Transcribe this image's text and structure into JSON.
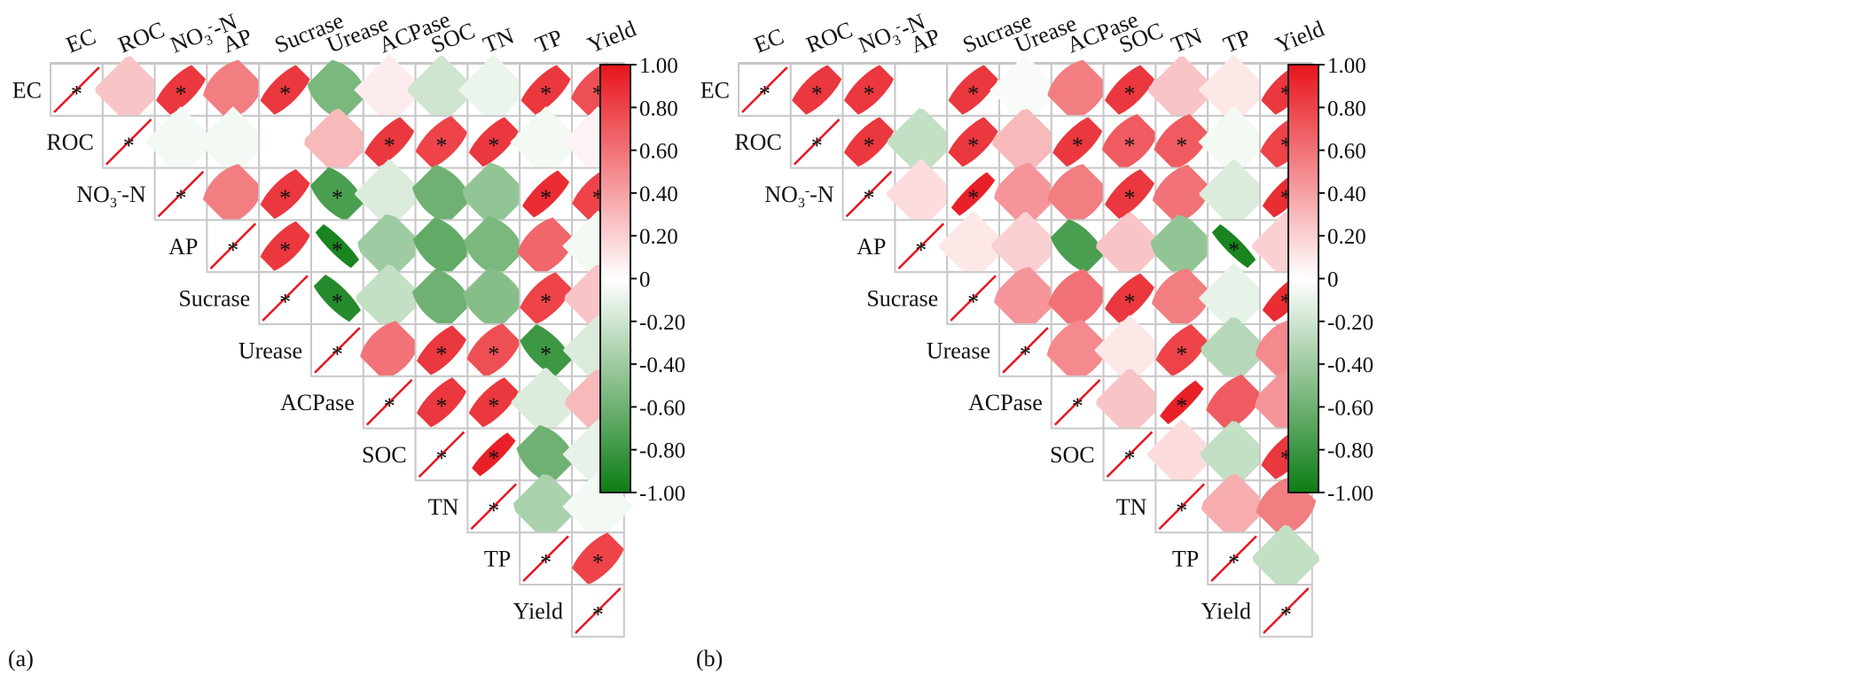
{
  "chart_data": [
    {
      "type": "heatmap",
      "panel_label": "(a)",
      "variables": [
        "EC",
        "ROC",
        "NO3-N",
        "AP",
        "Sucrase",
        "Urease",
        "ACPase",
        "SOC",
        "TN",
        "TP",
        "Yield"
      ],
      "variable_labels": [
        {
          "main": "EC"
        },
        {
          "main": "ROC"
        },
        {
          "main": "NO",
          "sub": "3",
          "sup": "-",
          "rest": "-N"
        },
        {
          "main": "AP"
        },
        {
          "main": "Sucrase"
        },
        {
          "main": "Urease"
        },
        {
          "main": "ACPase"
        },
        {
          "main": "SOC"
        },
        {
          "main": "TN"
        },
        {
          "main": "TP"
        },
        {
          "main": "Yield"
        }
      ],
      "matrix": [
        [
          1.0,
          0.25,
          0.85,
          0.55,
          0.85,
          -0.55,
          0.08,
          -0.2,
          -0.08,
          0.85,
          0.75
        ],
        [
          null,
          1.0,
          -0.05,
          -0.05,
          0.0,
          0.3,
          0.85,
          0.8,
          0.85,
          -0.05,
          0.05
        ],
        [
          null,
          null,
          1.0,
          0.55,
          0.85,
          -0.75,
          -0.15,
          -0.6,
          -0.45,
          0.9,
          0.8
        ],
        [
          null,
          null,
          null,
          1.0,
          0.85,
          -0.95,
          -0.4,
          -0.65,
          -0.55,
          0.65,
          -0.05
        ],
        [
          null,
          null,
          null,
          null,
          1.0,
          -0.9,
          -0.25,
          -0.6,
          -0.5,
          0.8,
          0.25
        ],
        [
          null,
          null,
          null,
          null,
          null,
          1.0,
          0.6,
          0.85,
          0.75,
          -0.8,
          -0.15
        ],
        [
          null,
          null,
          null,
          null,
          null,
          null,
          1.0,
          0.85,
          0.85,
          -0.15,
          0.3
        ],
        [
          null,
          null,
          null,
          null,
          null,
          null,
          null,
          1.0,
          0.95,
          -0.6,
          -0.1
        ],
        [
          null,
          null,
          null,
          null,
          null,
          null,
          null,
          null,
          1.0,
          -0.35,
          -0.05
        ],
        [
          null,
          null,
          null,
          null,
          null,
          null,
          null,
          null,
          null,
          1.0,
          0.8
        ],
        [
          null,
          null,
          null,
          null,
          null,
          null,
          null,
          null,
          null,
          null,
          1.0
        ]
      ],
      "significant": [
        [
          0,
          0
        ],
        [
          0,
          2
        ],
        [
          0,
          4
        ],
        [
          0,
          9
        ],
        [
          0,
          10
        ],
        [
          1,
          1
        ],
        [
          1,
          6
        ],
        [
          1,
          7
        ],
        [
          1,
          8
        ],
        [
          2,
          2
        ],
        [
          2,
          4
        ],
        [
          2,
          5
        ],
        [
          2,
          9
        ],
        [
          2,
          10
        ],
        [
          3,
          3
        ],
        [
          3,
          4
        ],
        [
          3,
          5
        ],
        [
          4,
          4
        ],
        [
          4,
          5
        ],
        [
          4,
          9
        ],
        [
          5,
          5
        ],
        [
          5,
          7
        ],
        [
          5,
          8
        ],
        [
          5,
          9
        ],
        [
          6,
          6
        ],
        [
          6,
          7
        ],
        [
          6,
          8
        ],
        [
          7,
          7
        ],
        [
          7,
          8
        ],
        [
          8,
          8
        ],
        [
          9,
          9
        ],
        [
          9,
          10
        ],
        [
          10,
          10
        ]
      ],
      "colorbar": {
        "min": -1.0,
        "max": 1.0,
        "ticks": [
          "1.00",
          "0.80",
          "0.60",
          "0.40",
          "0.20",
          "0",
          "-0.20",
          "-0.40",
          "-0.60",
          "-0.80",
          "-1.00"
        ],
        "positive_color": "#e8141c",
        "negative_color": "#0d7d14",
        "zero_color": "#ffffff"
      }
    },
    {
      "type": "heatmap",
      "panel_label": "(b)",
      "variables": [
        "EC",
        "ROC",
        "NO3-N",
        "AP",
        "Sucrase",
        "Urease",
        "ACPase",
        "SOC",
        "TN",
        "TP",
        "Yield"
      ],
      "variable_labels": [
        {
          "main": "EC"
        },
        {
          "main": "ROC"
        },
        {
          "main": "NO",
          "sub": "3",
          "sup": "-",
          "rest": "-N"
        },
        {
          "main": "AP"
        },
        {
          "main": "Sucrase"
        },
        {
          "main": "Urease"
        },
        {
          "main": "ACPase"
        },
        {
          "main": "SOC"
        },
        {
          "main": "TN"
        },
        {
          "main": "TP"
        },
        {
          "main": "Yield"
        }
      ],
      "matrix": [
        [
          1.0,
          0.85,
          0.85,
          0.0,
          0.85,
          -0.03,
          0.55,
          0.85,
          0.25,
          0.1,
          0.85
        ],
        [
          null,
          1.0,
          0.85,
          -0.25,
          0.85,
          0.3,
          0.85,
          0.7,
          0.7,
          -0.05,
          0.8
        ],
        [
          null,
          null,
          1.0,
          0.15,
          0.95,
          0.45,
          0.55,
          0.85,
          0.6,
          -0.15,
          0.9
        ],
        [
          null,
          null,
          null,
          1.0,
          0.1,
          0.2,
          -0.75,
          0.25,
          -0.45,
          -0.95,
          0.2
        ],
        [
          null,
          null,
          null,
          null,
          1.0,
          0.45,
          0.6,
          0.85,
          0.55,
          -0.1,
          0.9
        ],
        [
          null,
          null,
          null,
          null,
          null,
          1.0,
          0.5,
          0.1,
          0.8,
          -0.3,
          0.5
        ],
        [
          null,
          null,
          null,
          null,
          null,
          null,
          1.0,
          0.25,
          0.95,
          0.7,
          0.45
        ],
        [
          null,
          null,
          null,
          null,
          null,
          null,
          null,
          1.0,
          0.15,
          -0.25,
          0.85
        ],
        [
          null,
          null,
          null,
          null,
          null,
          null,
          null,
          null,
          1.0,
          0.35,
          0.55
        ],
        [
          null,
          null,
          null,
          null,
          null,
          null,
          null,
          null,
          null,
          1.0,
          -0.25
        ],
        [
          null,
          null,
          null,
          null,
          null,
          null,
          null,
          null,
          null,
          null,
          1.0
        ]
      ],
      "significant": [
        [
          0,
          0
        ],
        [
          0,
          1
        ],
        [
          0,
          2
        ],
        [
          0,
          4
        ],
        [
          0,
          7
        ],
        [
          0,
          10
        ],
        [
          1,
          1
        ],
        [
          1,
          2
        ],
        [
          1,
          4
        ],
        [
          1,
          6
        ],
        [
          1,
          7
        ],
        [
          1,
          8
        ],
        [
          1,
          10
        ],
        [
          2,
          2
        ],
        [
          2,
          4
        ],
        [
          2,
          7
        ],
        [
          2,
          10
        ],
        [
          3,
          3
        ],
        [
          3,
          9
        ],
        [
          4,
          4
        ],
        [
          4,
          7
        ],
        [
          4,
          10
        ],
        [
          5,
          5
        ],
        [
          5,
          8
        ],
        [
          6,
          6
        ],
        [
          6,
          8
        ],
        [
          7,
          7
        ],
        [
          7,
          10
        ],
        [
          8,
          8
        ],
        [
          9,
          9
        ],
        [
          10,
          10
        ]
      ],
      "colorbar": {
        "min": -1.0,
        "max": 1.0,
        "ticks": [
          "1.00",
          "0.80",
          "0.60",
          "0.40",
          "0.20",
          "0",
          "-0.20",
          "-0.40",
          "-0.60",
          "-0.80",
          "-1.00"
        ],
        "positive_color": "#e8141c",
        "negative_color": "#0d7d14",
        "zero_color": "#ffffff"
      }
    }
  ]
}
